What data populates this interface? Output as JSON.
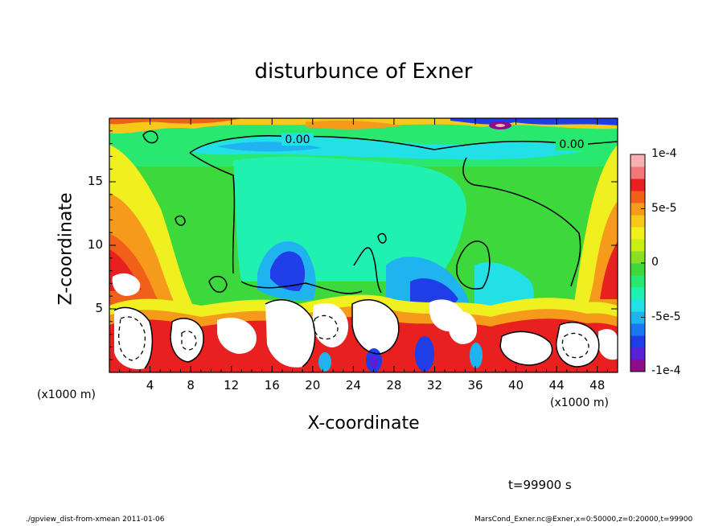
{
  "chart_data": {
    "type": "heatmap",
    "title": "disturbunce of Exner",
    "xlabel": "X-coordinate",
    "ylabel": "Z-coordinate",
    "x_unit": "(x1000 m)",
    "x_unit_right": "(x1000 m)",
    "xlim": [
      0,
      50
    ],
    "ylim": [
      0,
      20
    ],
    "x_ticks": [
      "4",
      "8",
      "12",
      "16",
      "20",
      "24",
      "28",
      "32",
      "36",
      "40",
      "44",
      "48"
    ],
    "y_ticks": [
      "5",
      "10",
      "15"
    ],
    "colorbar": {
      "range": [
        -0.0001,
        0.0001
      ],
      "tick_labels": [
        "1e-4",
        "5e-5",
        "0",
        "-5e-5",
        "-1e-4"
      ],
      "colors": [
        "#8c0c8c",
        "#5a1fd6",
        "#1f3ee8",
        "#1b78f0",
        "#1fb4f0",
        "#22e0e6",
        "#20f0b0",
        "#28e870",
        "#3cd83c",
        "#88e020",
        "#c8ee18",
        "#f0f020",
        "#f5c81a",
        "#f59a1a",
        "#f06018",
        "#e82020",
        "#f07878",
        "#f8b0b0"
      ]
    },
    "contour_labels": [
      "0.00",
      "0.00"
    ]
  },
  "annotation": {
    "time": "t=99900 s",
    "footer_left": "./gpview_dist-from-xmean   2011-01-06",
    "footer_right": "MarsCond_Exner.nc@Exner,x=0:50000,z=0:20000,t=99900"
  }
}
